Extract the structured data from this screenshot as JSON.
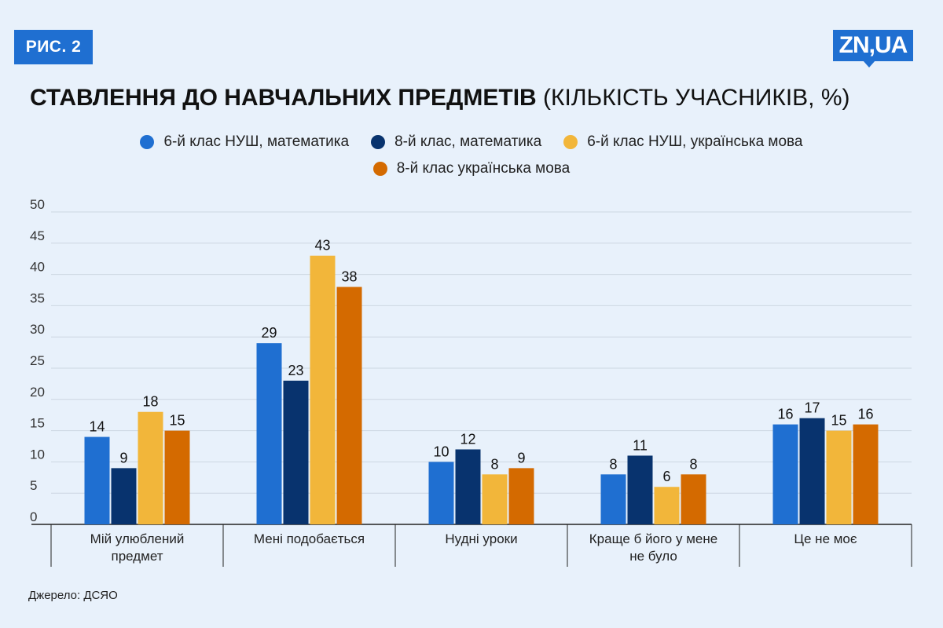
{
  "badge": "РИС. 2",
  "logo": "ZN,UA",
  "title_bold": "СТАВЛЕННЯ ДО НАВЧАЛЬНИХ ПРЕДМЕТІВ",
  "title_rest": " (КІЛЬКІСТЬ УЧАСНИКІВ, %)",
  "source": "Джерело: ДСЯО",
  "colors": {
    "background": "#e8f1fb",
    "accent": "#1f6fd1",
    "grid": "#ccd6e2",
    "axis": "#222222"
  },
  "chart_data": {
    "type": "bar",
    "title": "СТАВЛЕННЯ ДО НАВЧАЛЬНИХ ПРЕДМЕТІВ (КІЛЬКІСТЬ УЧАСНИКІВ, %)",
    "categories": [
      "Мій улюблений предмет",
      "Мені подобається",
      "Нудні уроки",
      "Краще б його у мене не було",
      "Це не моє"
    ],
    "category_lines": [
      [
        "Мій улюблений",
        "предмет"
      ],
      [
        "Мені подобається"
      ],
      [
        "Нудні уроки"
      ],
      [
        "Краще б його у мене",
        "не було"
      ],
      [
        "Це не моє"
      ]
    ],
    "series": [
      {
        "name": "6-й клас НУШ, математика",
        "color": "#1f6fd1",
        "values": [
          14,
          29,
          10,
          8,
          16
        ]
      },
      {
        "name": "8-й клас, математика",
        "color": "#08336e",
        "values": [
          9,
          23,
          12,
          11,
          17
        ]
      },
      {
        "name": "6-й клас НУШ, українська мова",
        "color": "#f2b63a",
        "values": [
          18,
          43,
          8,
          6,
          15
        ]
      },
      {
        "name": "8-й клас українська мова",
        "color": "#d46a00",
        "values": [
          15,
          38,
          9,
          8,
          16
        ]
      }
    ],
    "yticks": [
      0,
      5,
      10,
      15,
      20,
      25,
      30,
      35,
      40,
      45,
      50
    ],
    "ylim": [
      0,
      50
    ],
    "grid": true,
    "legend_position": "top"
  }
}
